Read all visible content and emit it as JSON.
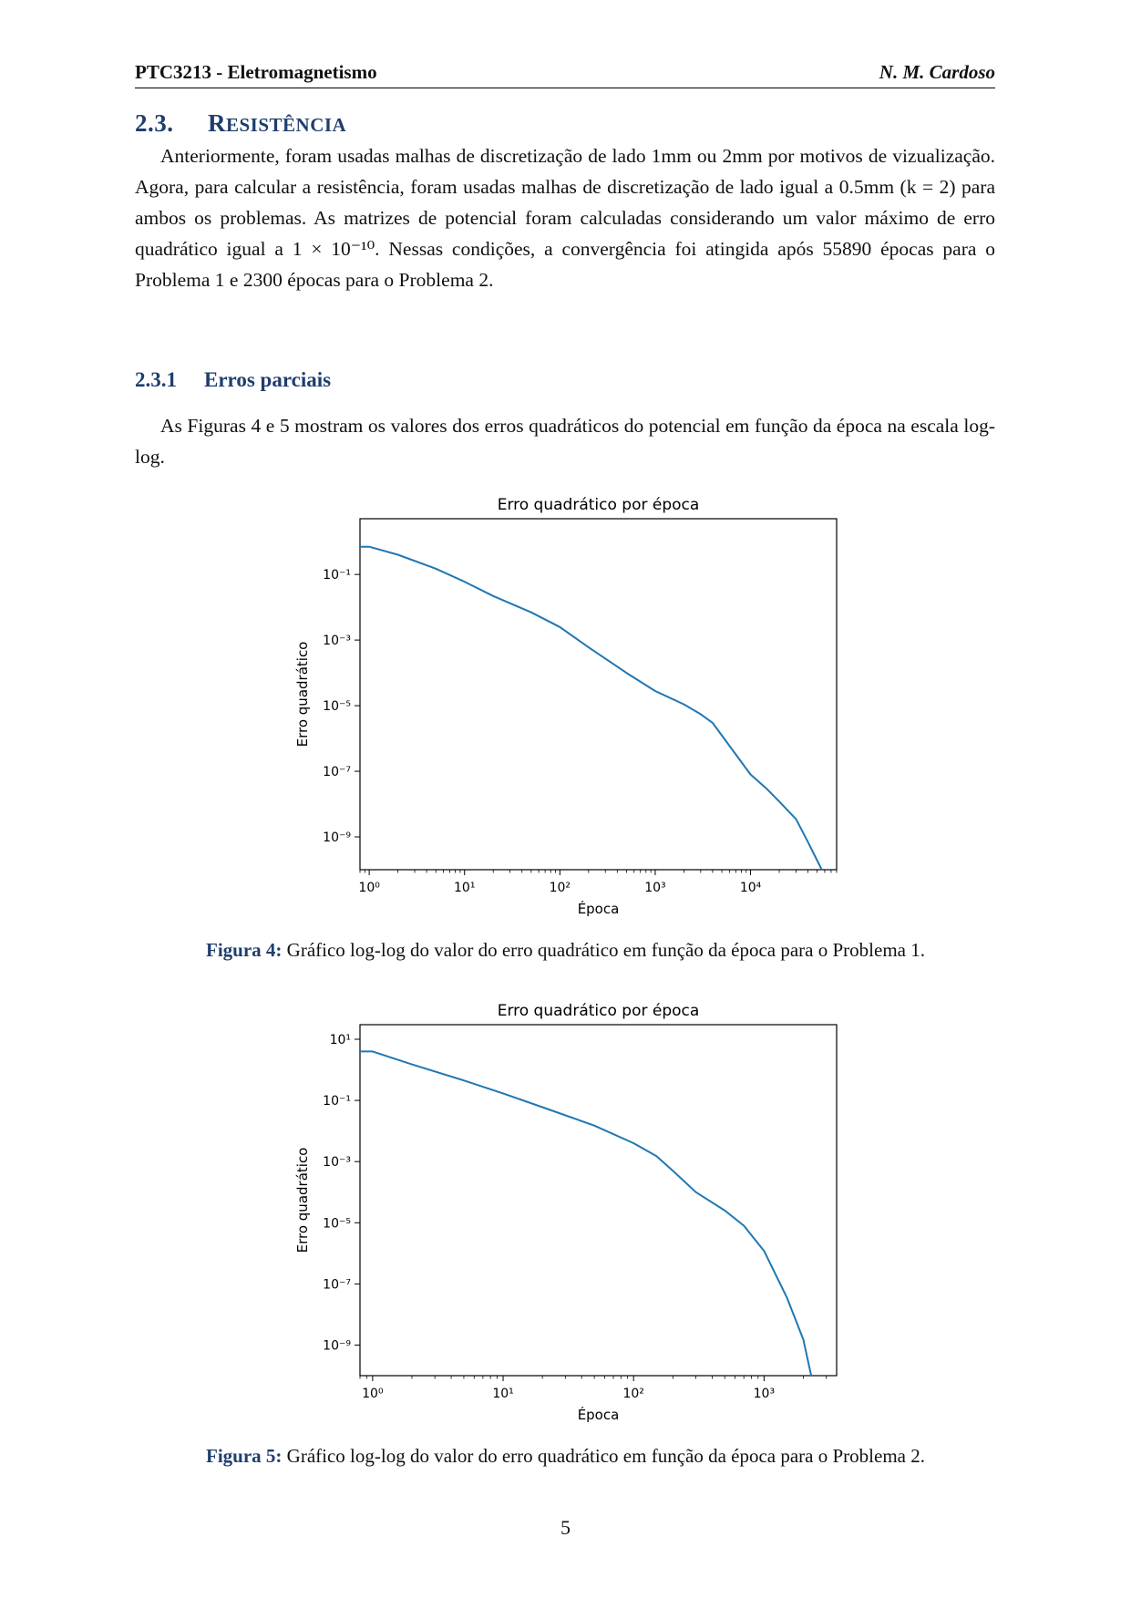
{
  "header": {
    "course": "PTC3213 - Eletromagnetismo",
    "author": "N. M. Cardoso"
  },
  "section": {
    "number": "2.3.",
    "title_first": "R",
    "title_rest": "ESISTÊNCIA"
  },
  "paragraph1": "Anteriormente, foram usadas malhas de discretização de lado 1mm ou 2mm por motivos de vizualização. Agora, para calcular a resistência, foram usadas malhas de discretização de lado igual a 0.5mm (k = 2) para ambos os problemas. As matrizes de potencial foram calculadas considerando um valor máximo de erro quadrático igual a 1 × 10⁻¹⁰. Nessas condições, a convergência foi atingida após 55890 épocas para o Problema 1 e 2300 épocas para o Problema 2.",
  "subsection": {
    "number": "2.3.1",
    "title": "Erros parciais"
  },
  "paragraph2": "As Figuras 4 e 5 mostram os valores dos erros quadráticos do potencial em função da época na escala log-log.",
  "figures": [
    {
      "label": "Figura 4:",
      "caption": "Gráfico log-log do valor do erro quadrático em função da época para o Problema 1."
    },
    {
      "label": "Figura 5:",
      "caption": "Gráfico log-log do valor do erro quadrático em função da época para o Problema 2."
    }
  ],
  "page_number": "5",
  "chart_data": [
    {
      "type": "line",
      "title": "Erro quadrático por época",
      "xlabel": "Época",
      "ylabel": "Erro quadrático",
      "xscale": "log",
      "yscale": "log",
      "xlim": [
        0.8,
        80000
      ],
      "ylim": [
        1e-10,
        5
      ],
      "xticks": [
        1,
        10,
        100,
        1000,
        10000
      ],
      "xtick_labels": [
        "10⁰",
        "10¹",
        "10²",
        "10³",
        "10⁴"
      ],
      "yticks": [
        1e-09,
        1e-07,
        1e-05,
        0.001,
        0.1
      ],
      "ytick_labels": [
        "10⁻⁹",
        "10⁻⁷",
        "10⁻⁵",
        "10⁻³",
        "10⁻¹"
      ],
      "color": "#1f77b4",
      "series": [
        {
          "x": [
            0.8,
            1,
            2,
            5,
            10,
            20,
            50,
            100,
            200,
            500,
            1000,
            2000,
            3000,
            4000,
            6000,
            10000,
            15000,
            20000,
            30000,
            40000,
            55890
          ],
          "y": [
            0.7,
            0.7,
            0.4,
            0.15,
            0.06,
            0.022,
            0.007,
            0.0025,
            0.0006,
            0.0001,
            2.8e-05,
            1.1e-05,
            5.5e-06,
            3e-06,
            6e-07,
            8e-08,
            2.8e-08,
            1.2e-08,
            3.5e-09,
            7e-10,
            1e-10
          ]
        }
      ]
    },
    {
      "type": "line",
      "title": "Erro quadrático por época",
      "xlabel": "Época",
      "ylabel": "Erro quadrático",
      "xscale": "log",
      "yscale": "log",
      "xlim": [
        0.8,
        3600
      ],
      "ylim": [
        1e-10,
        30
      ],
      "xticks": [
        1,
        10,
        100,
        1000
      ],
      "xtick_labels": [
        "10⁰",
        "10¹",
        "10²",
        "10³"
      ],
      "yticks": [
        1e-09,
        1e-07,
        1e-05,
        0.001,
        0.1,
        10
      ],
      "ytick_labels": [
        "10⁻⁹",
        "10⁻⁷",
        "10⁻⁵",
        "10⁻³",
        "10⁻¹",
        "10¹"
      ],
      "color": "#1f77b4",
      "series": [
        {
          "x": [
            0.8,
            1,
            2,
            5,
            10,
            20,
            50,
            100,
            150,
            200,
            300,
            500,
            700,
            1000,
            1500,
            2000,
            2300
          ],
          "y": [
            4,
            4,
            1.5,
            0.45,
            0.17,
            0.06,
            0.015,
            0.004,
            0.0015,
            0.0005,
            0.0001,
            2.5e-05,
            8e-06,
            1.2e-06,
            3.5e-08,
            1.5e-09,
            1e-10
          ]
        }
      ]
    }
  ]
}
